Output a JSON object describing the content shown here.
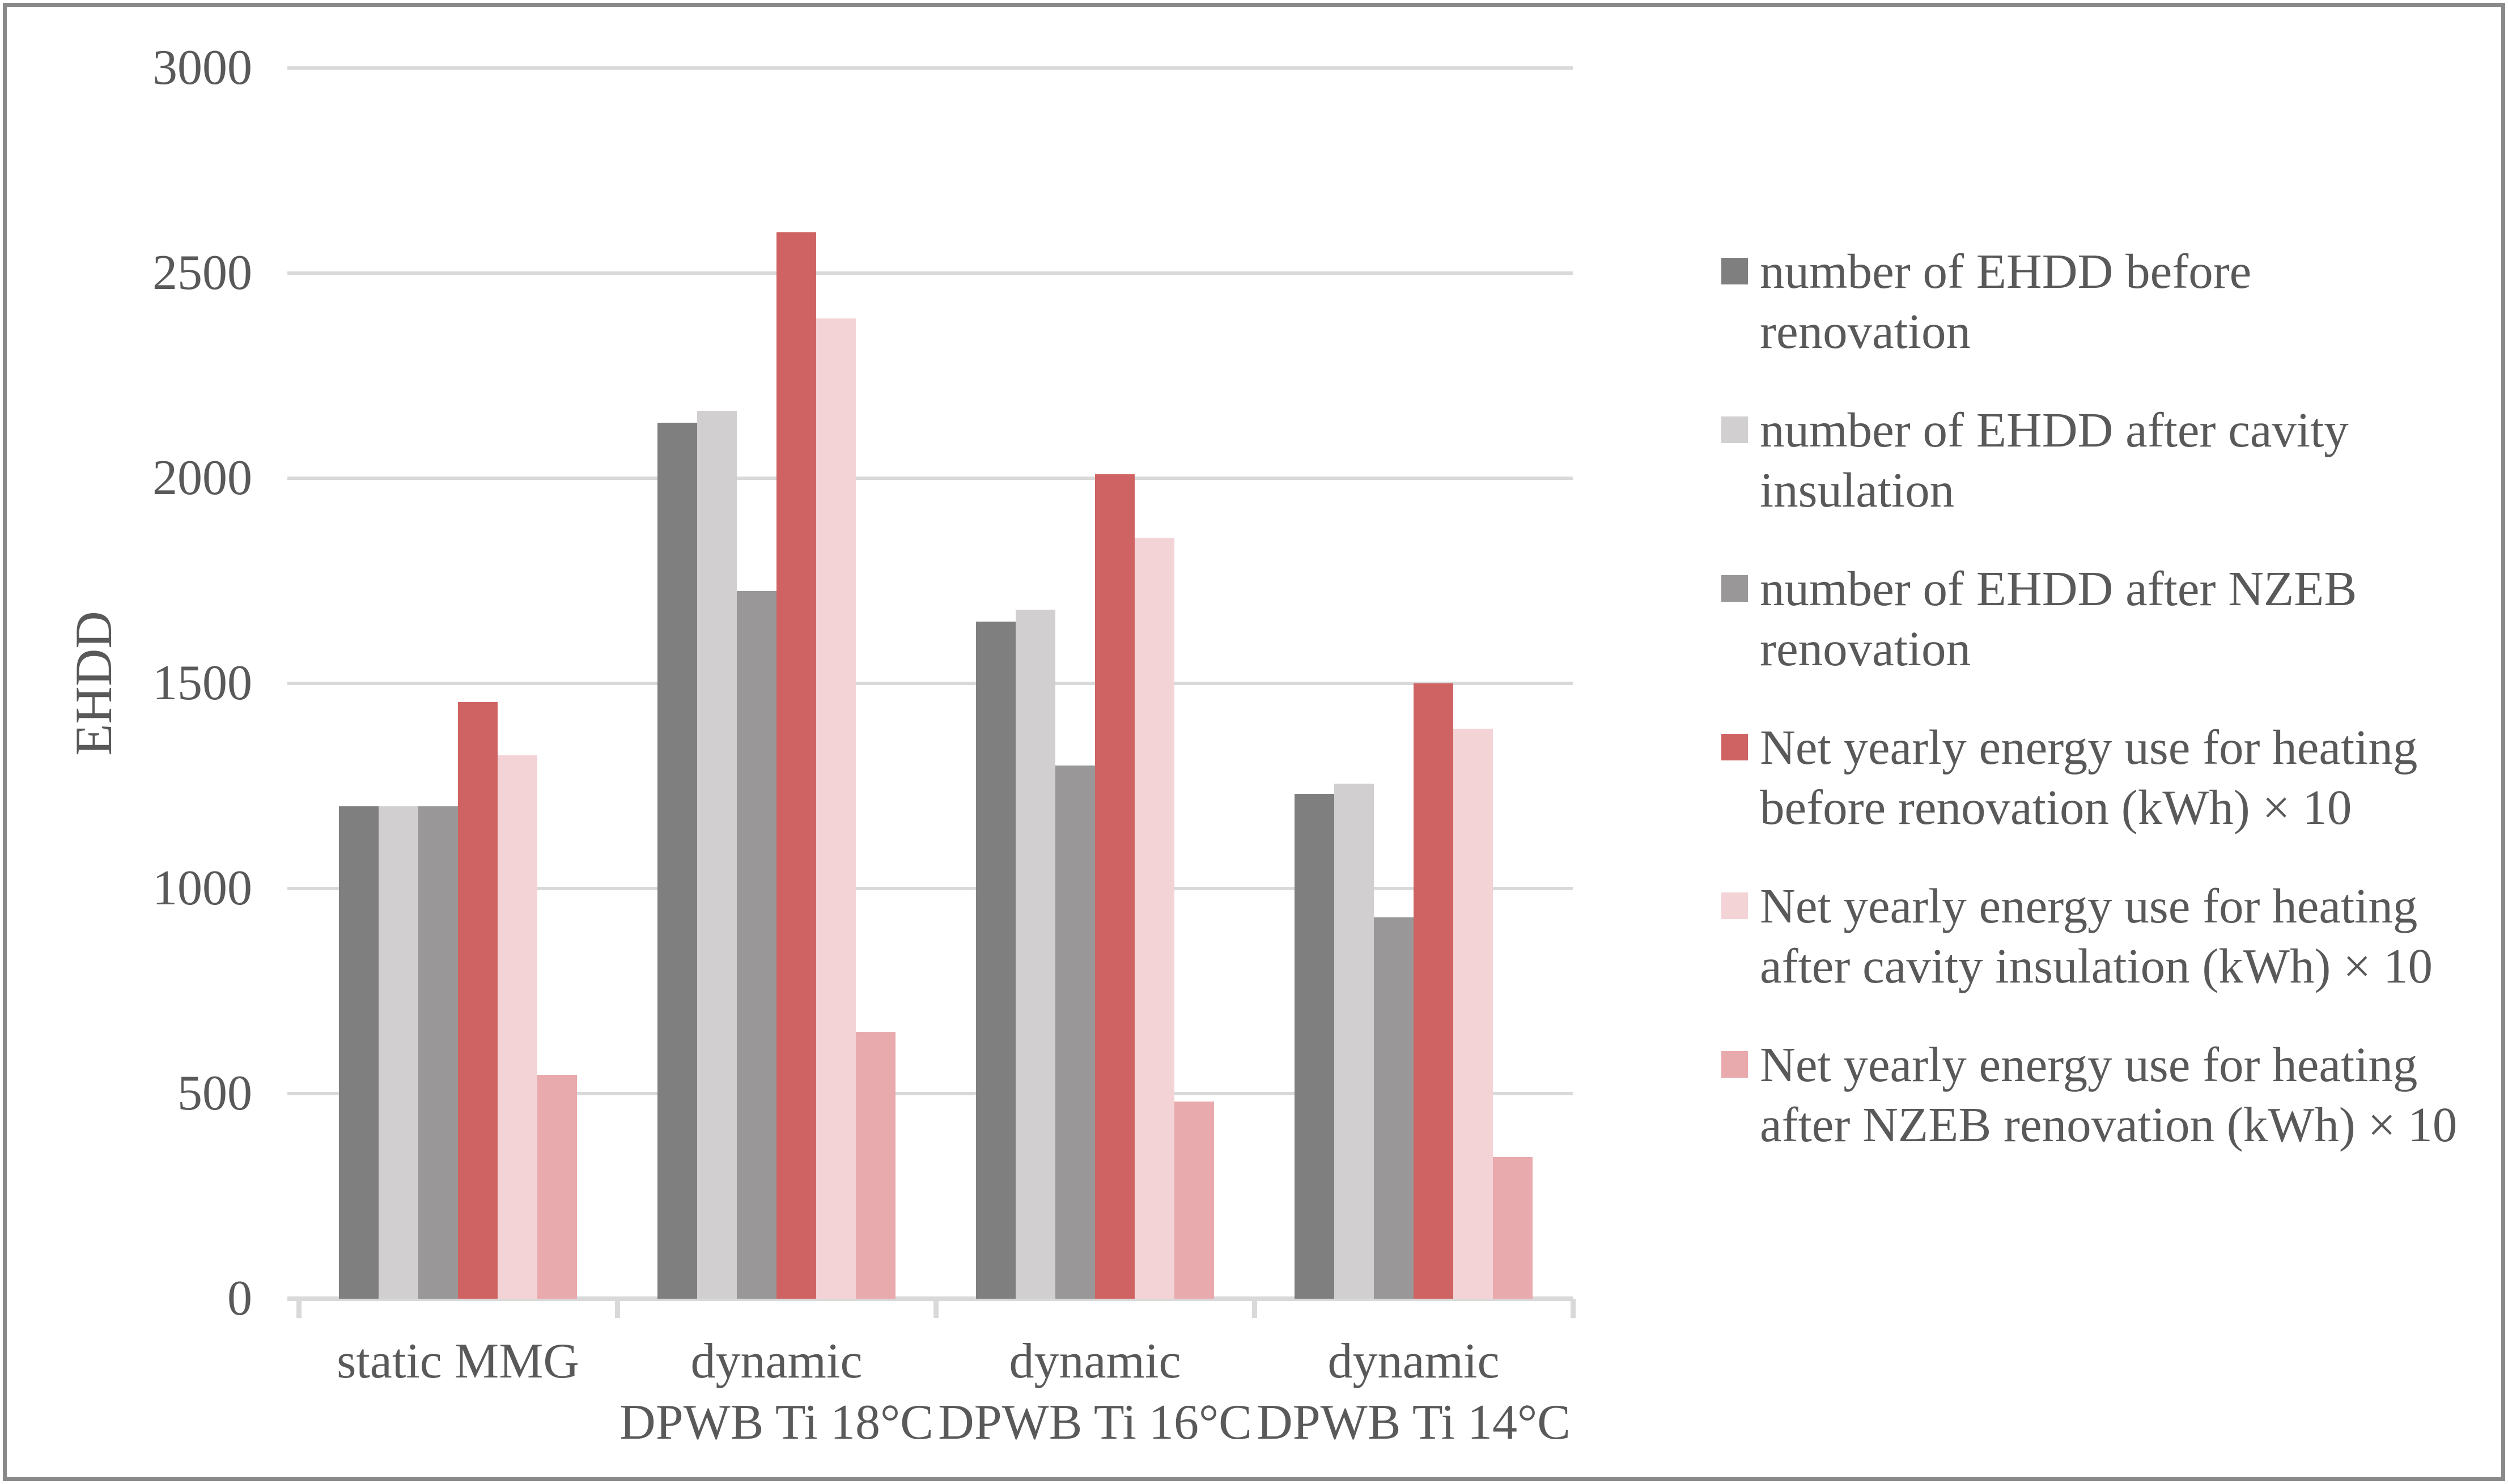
{
  "figure": {
    "background": "#ffffff",
    "border_color": "#898989"
  },
  "chart_data": {
    "type": "bar",
    "title": "",
    "xlabel": "",
    "ylabel": "EHDD",
    "ylim": [
      0,
      3000
    ],
    "yticks": [
      0,
      500,
      1000,
      1500,
      2000,
      2500,
      3000
    ],
    "grid": "horizontal",
    "grid_color": "#d9d9d9",
    "text_color": "#595959",
    "legend_position": "right",
    "categories": [
      "static MMG",
      "dynamic DPWB Ti 18°C",
      "dynamic DPWB Ti 16°C",
      "dynamic DPWB Ti 14°C"
    ],
    "category_lines": [
      [
        "static MMG",
        ""
      ],
      [
        "dynamic",
        "DPWB Ti 18°C"
      ],
      [
        "dynamic",
        "DPWB Ti 16°C"
      ],
      [
        "dynamic",
        "DPWB Ti 14°C"
      ]
    ],
    "series": [
      {
        "name": "number of EHDD before renovation",
        "legend_lines": [
          "number of EHDD before",
          "renovation"
        ],
        "color": "#7f7f7f",
        "values": [
          1200,
          2135,
          1650,
          1230
        ]
      },
      {
        "name": "number of EHDD after cavity insulation",
        "legend_lines": [
          "number of EHDD after cavity",
          "insulation"
        ],
        "color": "#d1cfd0",
        "values": [
          1200,
          2165,
          1680,
          1255
        ]
      },
      {
        "name": "number of EHDD after NZEB renovation",
        "legend_lines": [
          "number of EHDD after NZEB",
          "renovation"
        ],
        "color": "#999797",
        "values": [
          1200,
          1725,
          1300,
          930
        ]
      },
      {
        "name": "Net yearly energy use for heating before renovation (kWh) × 10",
        "legend_lines": [
          "Net yearly energy use for heating",
          "before renovation (kWh) × 10"
        ],
        "color": "#cf6364",
        "values": [
          1455,
          2600,
          2010,
          1500
        ]
      },
      {
        "name": "Net yearly energy use for heating after cavity insulation (kWh) × 10",
        "legend_lines": [
          "Net yearly energy use for heating",
          "after cavity insulation (kWh) × 10"
        ],
        "color": "#f3d3d6",
        "values": [
          1325,
          2390,
          1855,
          1390
        ]
      },
      {
        "name": "Net yearly energy use for heating after NZEB renovation (kWh) × 10",
        "legend_lines": [
          "Net yearly energy use for heating",
          "after NZEB renovation (kWh) × 10"
        ],
        "color": "#e9aaad",
        "values": [
          545,
          650,
          480,
          345
        ]
      }
    ]
  }
}
